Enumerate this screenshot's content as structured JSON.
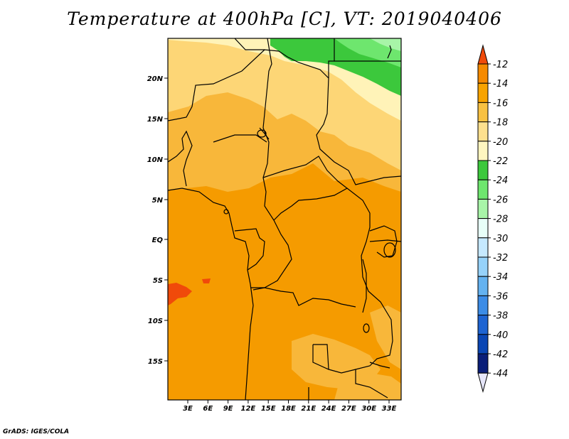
{
  "title": "Temperature at 400hPa [C], VT: 2019040406",
  "credit": "GrADS: IGES/COLA",
  "map": {
    "lat_labels": [
      "20N",
      "15N",
      "10N",
      "5N",
      "EQ",
      "5S",
      "10S",
      "15S"
    ],
    "lon_labels": [
      "3E",
      "6E",
      "9E",
      "12E",
      "15E",
      "18E",
      "21E",
      "24E",
      "27E",
      "30E",
      "33E"
    ]
  },
  "colorbar": {
    "labels": [
      "-12",
      "-14",
      "-16",
      "-18",
      "-20",
      "-22",
      "-24",
      "-26",
      "-28",
      "-30",
      "-32",
      "-34",
      "-36",
      "-38",
      "-40",
      "-42",
      "-44"
    ],
    "colors": [
      "#f04a0a",
      "#f58a00",
      "#f7a300",
      "#f8c142",
      "#fde08e",
      "#fff6c0",
      "#3cc83c",
      "#6ee66e",
      "#a8f5a8",
      "#e8fff8",
      "#c6e9ff",
      "#96d2fa",
      "#64b2f0",
      "#3c8ce6",
      "#1e64d2",
      "#0a46b4",
      "#0a1e78",
      "#e6e6fa"
    ]
  },
  "regions": {
    "field_colors": {
      "c12_14": "#f04a0a",
      "c14_16": "#f59b00",
      "c16_18": "#f8b73a",
      "c18_20": "#fdd676",
      "c20_22": "#fff3b8",
      "c22_24": "#3cc83c",
      "c24_26": "#6ee66e",
      "c26_28": "#a8f5a8"
    }
  }
}
